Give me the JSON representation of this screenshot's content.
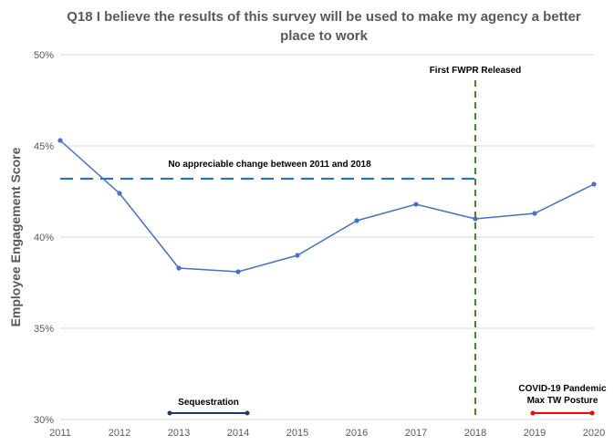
{
  "chart_data": {
    "type": "line",
    "title": "Q18 I believe the results of this survey will be used to make my agency a better place to work",
    "xlabel": "",
    "ylabel": "Employee Engagement Score",
    "x": [
      "2011",
      "2012",
      "2013",
      "2014",
      "2015",
      "2016",
      "2017",
      "2018",
      "2019",
      "2020"
    ],
    "series": [
      {
        "values": [
          45.3,
          42.4,
          38.3,
          38.1,
          39.0,
          40.9,
          41.8,
          41.0,
          41.3,
          42.9
        ]
      }
    ],
    "ylim": [
      30,
      50
    ],
    "yticks": [
      30,
      35,
      40,
      45,
      50
    ],
    "ytick_labels": [
      "30%",
      "35%",
      "40%",
      "45%",
      "50%"
    ],
    "grid": true,
    "colors": {
      "series": "#4472c4",
      "reference": "#2e75b6",
      "fwpr": "#548235",
      "sequestration": "#1f3864",
      "covid": "#ff0000",
      "grid": "#d9d9d9",
      "text": "#595959"
    },
    "annotations": {
      "reference_line": {
        "label": "No appreciable change between 2011 and 2018",
        "y": 43.2,
        "x_from": "2011",
        "x_to": "2018"
      },
      "fwpr_line": {
        "label": "First FWPR Released",
        "x": "2018"
      },
      "sequestration": {
        "label": "Sequestration",
        "x_from": "2013",
        "x_to": "2014"
      },
      "covid": {
        "label_line1": "COVID-19 Pandemic",
        "label_line2": "Max TW Posture",
        "x_from": "2019",
        "x_to": "2020"
      }
    }
  }
}
